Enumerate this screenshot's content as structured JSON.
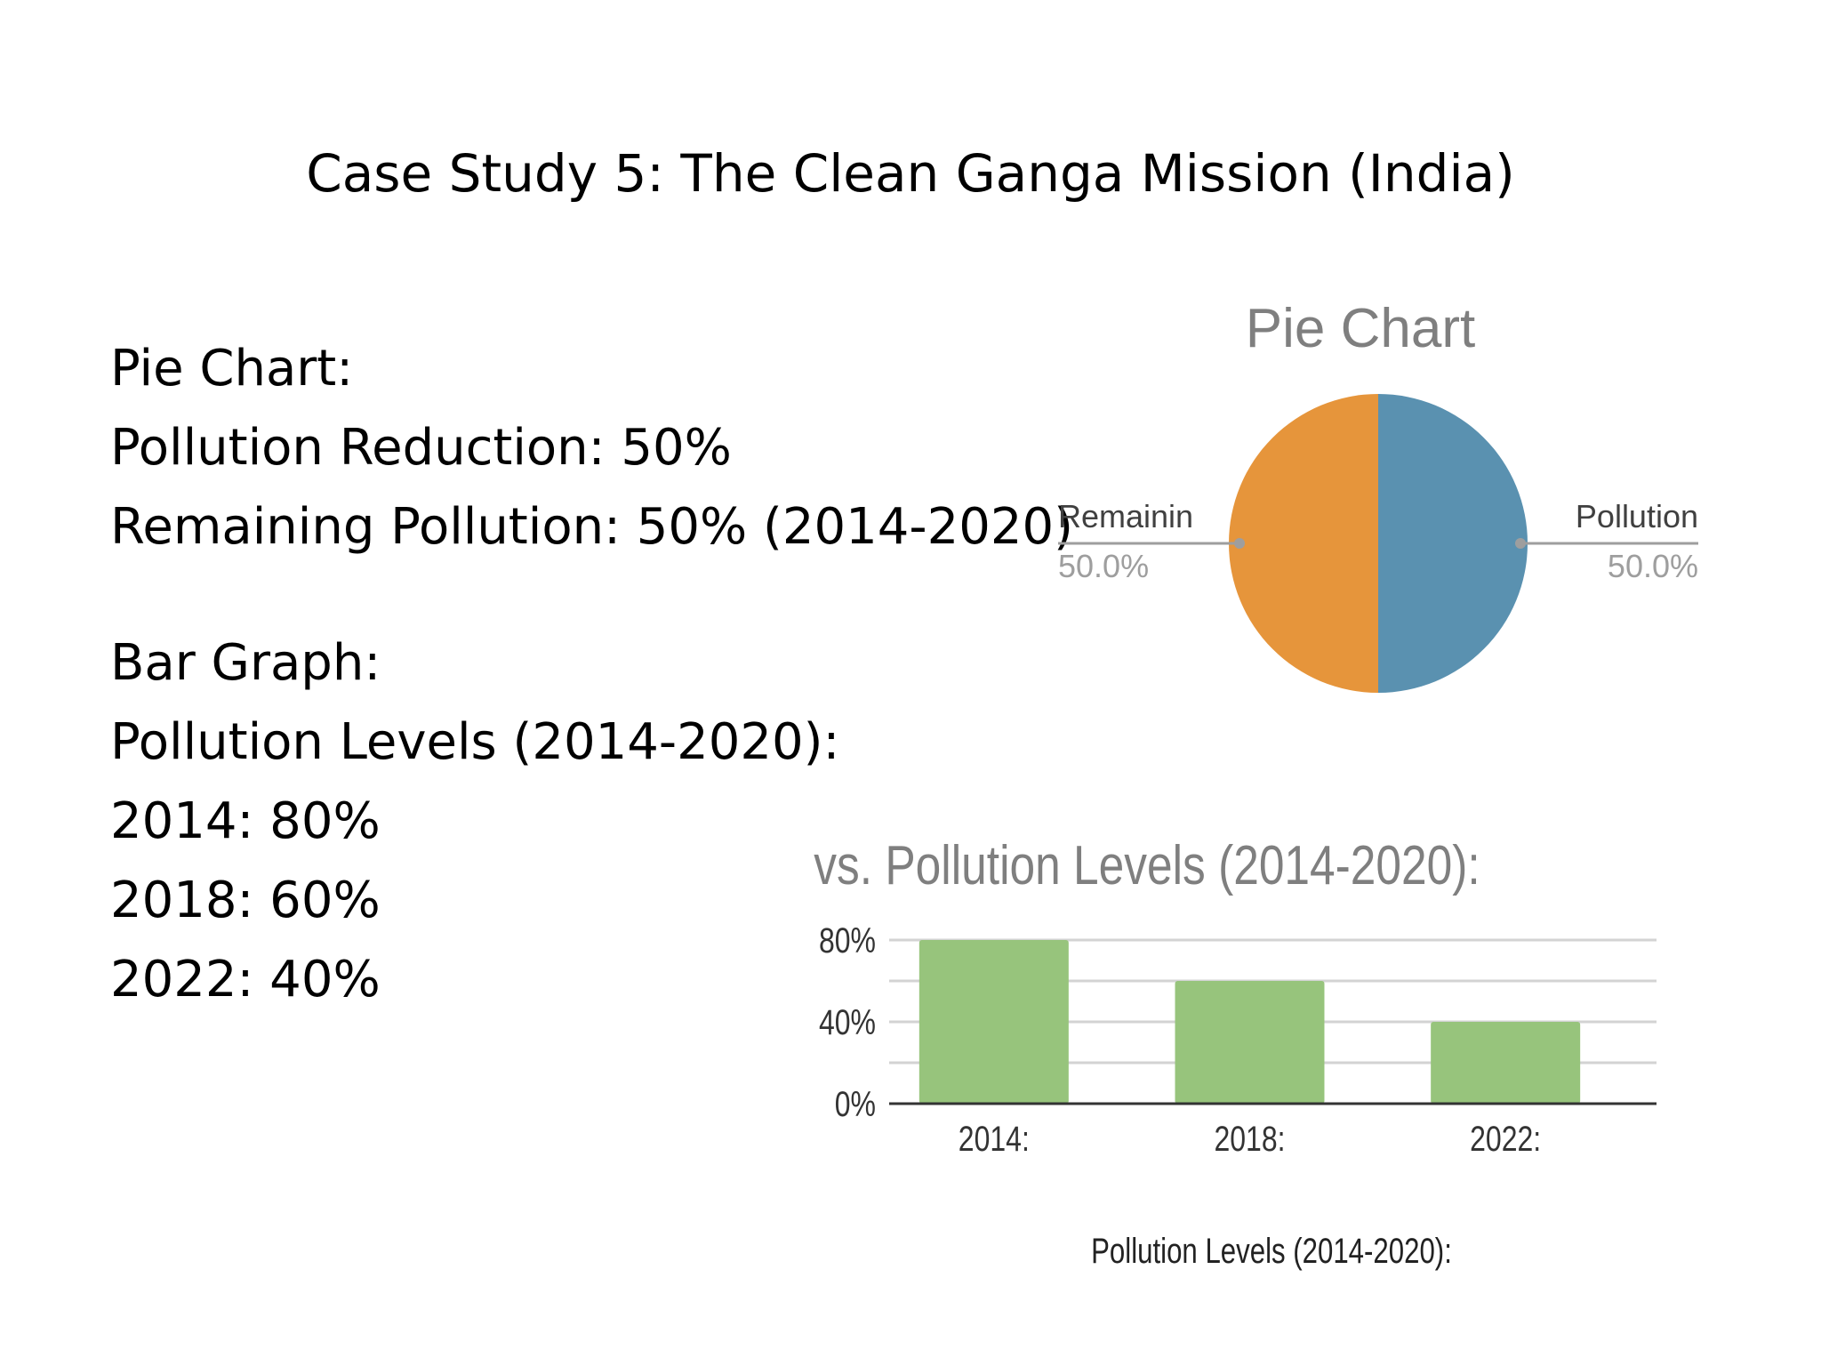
{
  "slide": {
    "title": "Case Study 5: The Clean Ganga Mission (India)"
  },
  "body": {
    "pie_heading": "Pie Chart:",
    "pie_line1": "Pollution Reduction: 50%",
    "pie_line2": "Remaining Pollution: 50% (2014-2020)",
    "bar_heading": "Bar Graph:",
    "bar_line1": "Pollution Levels (2014-2020):",
    "bar_items": [
      "2014: 80%",
      "2018: 60%",
      "2022: 40%"
    ]
  },
  "colors": {
    "pie_left": "#E6953B",
    "pie_right": "#5A91B0",
    "bar": "#97C47C",
    "chart_title": "#7F7F7F",
    "label_value": "#9E9E9E",
    "grid": "#D3D3D3"
  },
  "chart_data": [
    {
      "type": "pie",
      "title": "Pie Chart",
      "slices": [
        {
          "label": "Pollution",
          "value": 50.0,
          "display": "50.0%",
          "side": "right"
        },
        {
          "label": "Remainin",
          "value": 50.0,
          "display": "50.0%",
          "side": "left"
        }
      ]
    },
    {
      "type": "bar",
      "title": "vs. Pollution Levels (2014-2020):",
      "categories": [
        "2014:",
        "2018:",
        "2022:"
      ],
      "values": [
        80,
        60,
        40
      ],
      "xlabel": "Pollution Levels (2014-2020):",
      "ylabel": "",
      "ylim": [
        0,
        80
      ],
      "yticks": [
        {
          "value": 0,
          "label": "0%"
        },
        {
          "value": 40,
          "label": "40%"
        },
        {
          "value": 80,
          "label": "80%"
        }
      ],
      "gridlines": [
        20,
        40,
        60,
        80
      ],
      "grid": true
    }
  ]
}
